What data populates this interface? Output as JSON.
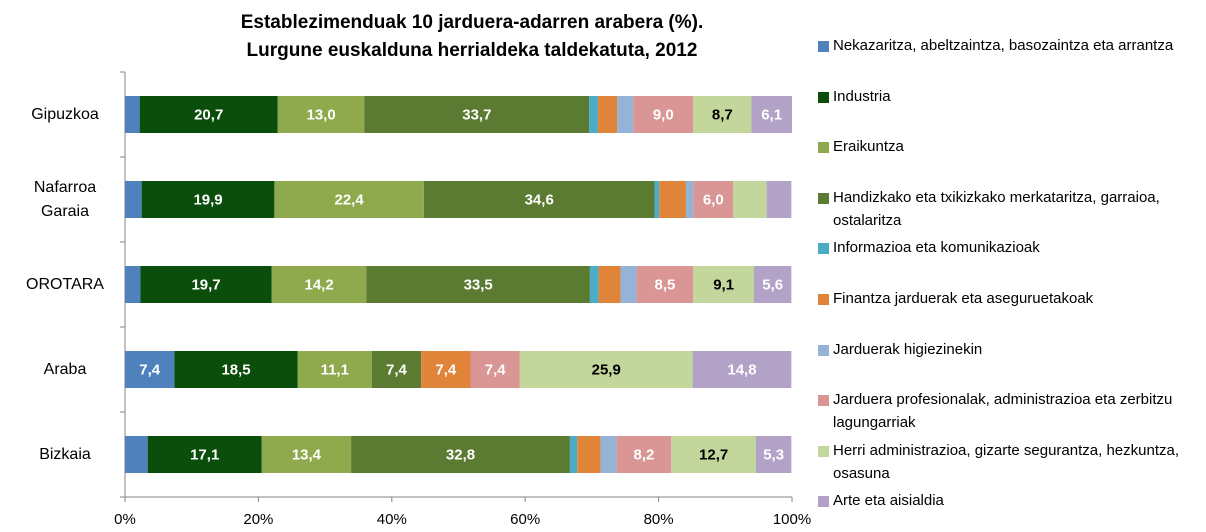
{
  "chart_data": {
    "type": "stacked_barh",
    "title": [
      "Establezimenduak 10 jarduera-adarren arabera (%).",
      "Lurgune euskalduna herrialdeka taldekatuta, 2012"
    ],
    "categories": [
      "Gipuzkoa",
      "Nafarroa Garaia",
      "OROTARA",
      "Araba",
      "Bizkaia"
    ],
    "xlim": [
      0,
      100
    ],
    "xticks": [
      {
        "value": 0,
        "label": "0%"
      },
      {
        "value": 20,
        "label": "20%"
      },
      {
        "value": 40,
        "label": "40%"
      },
      {
        "value": 60,
        "label": "60%"
      },
      {
        "value": 80,
        "label": "80%"
      },
      {
        "value": 100,
        "label": "100%"
      }
    ],
    "legend": "right",
    "series": [
      {
        "name": "Nekazaritza, abeltzaintza, basozaintza eta arrantza",
        "color": "#4f81bd",
        "values": [
          2.2,
          2.5,
          2.3,
          7.4,
          3.4
        ],
        "value_labels": [
          null,
          null,
          null,
          "7,4",
          null
        ]
      },
      {
        "name": "Industria",
        "color": "#0b4d0b",
        "values": [
          20.7,
          19.9,
          19.7,
          18.5,
          17.1
        ],
        "value_labels": [
          "20,7",
          "19,9",
          "19,7",
          "18,5",
          "17,1"
        ]
      },
      {
        "name": "Eraikuntza",
        "color": "#8faa4d",
        "values": [
          13.0,
          22.4,
          14.2,
          11.1,
          13.4
        ],
        "value_labels": [
          "13,0",
          "22,4",
          "14,2",
          "11,1",
          "13,4"
        ]
      },
      {
        "name": "Handizkako eta txikizkako merkataritza, garraioa, ostalaritza",
        "color": "#5b7a32",
        "values": [
          33.7,
          34.6,
          33.5,
          7.4,
          32.8
        ],
        "value_labels": [
          "33,7",
          "34,6",
          "33,5",
          "7,4",
          "32,8"
        ]
      },
      {
        "name": "Informazioa eta komunikazioak",
        "color": "#4bacc6",
        "values": [
          1.3,
          0.7,
          1.3,
          0,
          1.1
        ],
        "value_labels": [
          null,
          null,
          null,
          null,
          null
        ]
      },
      {
        "name": "Finantza jarduerak eta aseguruetakoak",
        "color": "#e0843a",
        "values": [
          2.9,
          4.0,
          3.3,
          7.4,
          3.5
        ],
        "value_labels": [
          null,
          null,
          null,
          "7,4",
          null
        ]
      },
      {
        "name": "Jarduerak higiezinekin",
        "color": "#95b3d7",
        "values": [
          2.4,
          1.1,
          2.4,
          0,
          2.4
        ],
        "value_labels": [
          null,
          null,
          null,
          null,
          null
        ]
      },
      {
        "name": "Jarduera profesionalak, administrazioa eta zerbitzu lagungarriak",
        "color": "#d99694",
        "values": [
          9.0,
          6.0,
          8.5,
          7.4,
          8.2
        ],
        "value_labels": [
          "9,0",
          "6,0",
          "8,5",
          "7,4",
          "8,2"
        ]
      },
      {
        "name": "Herri administrazioa, gizarte segurantza, hezkuntza, osasuna",
        "color": "#c3d69b",
        "values": [
          8.7,
          5.0,
          9.1,
          25.9,
          12.7
        ],
        "value_labels": [
          "8,7",
          null,
          "9,1",
          "25,9",
          "12,7"
        ]
      },
      {
        "name": "Arte eta aisialdia",
        "color": "#b3a2c7",
        "values": [
          6.1,
          3.7,
          5.6,
          14.8,
          5.3
        ],
        "value_labels": [
          "6,1",
          null,
          "5,6",
          "14,8",
          "5,3"
        ]
      }
    ]
  }
}
